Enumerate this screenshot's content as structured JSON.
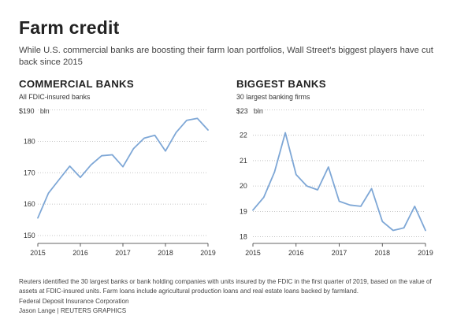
{
  "title": "Farm credit",
  "subtitle": "While U.S. commercial banks are boosting their farm loan portfolios, Wall Street's biggest players have cut back since 2015",
  "chart_data": [
    {
      "type": "line",
      "title": "COMMERCIAL BANKS",
      "subtitle": "All FDIC-insured banks",
      "unit_label": "$190   bln",
      "xlim": [
        2015,
        2019
      ],
      "ylim": [
        148,
        190
      ],
      "x_ticks": [
        "2015",
        "2016",
        "2017",
        "2018",
        "2019"
      ],
      "y_ticks": [
        150,
        160,
        170,
        180,
        190
      ],
      "y_tick_labels": [
        "150",
        "160",
        "170",
        "180",
        ""
      ],
      "color": "#7ea7d6",
      "series": [
        {
          "x": [
            2015.0,
            2015.25,
            2015.5,
            2015.75,
            2016.0,
            2016.25,
            2016.5,
            2016.75,
            2017.0,
            2017.25,
            2017.5,
            2017.75,
            2018.0,
            2018.25,
            2018.5,
            2018.75,
            2019.0
          ],
          "values": [
            155.6,
            163.5,
            167.8,
            172.1,
            168.5,
            172.5,
            175.4,
            175.7,
            171.9,
            177.7,
            181.0,
            181.9,
            176.9,
            182.8,
            186.7,
            187.3,
            183.6
          ]
        }
      ]
    },
    {
      "type": "line",
      "title": "BIGGEST BANKS",
      "subtitle": "30 largest banking firms",
      "unit_label": "$23   bln",
      "xlim": [
        2015,
        2019
      ],
      "ylim": [
        17.8,
        23
      ],
      "x_ticks": [
        "2015",
        "2016",
        "2017",
        "2018",
        "2019"
      ],
      "y_ticks": [
        18,
        19,
        20,
        21,
        22,
        23
      ],
      "y_tick_labels": [
        "18",
        "19",
        "20",
        "21",
        "22",
        ""
      ],
      "color": "#7ea7d6",
      "series": [
        {
          "x": [
            2015.0,
            2015.25,
            2015.5,
            2015.75,
            2016.0,
            2016.25,
            2016.5,
            2016.75,
            2017.0,
            2017.25,
            2017.5,
            2017.75,
            2018.0,
            2018.25,
            2018.5,
            2018.75,
            2019.0
          ],
          "values": [
            19.05,
            19.55,
            20.55,
            22.1,
            20.45,
            20.0,
            19.85,
            20.75,
            19.4,
            19.25,
            19.2,
            19.9,
            18.6,
            18.25,
            18.35,
            19.2,
            18.25
          ]
        }
      ]
    }
  ],
  "footer": {
    "note": "Reuters identified the 30 largest banks or bank holding companies with units insured by the FDIC in the first quarter of 2019, based on the value of assets at FDIC-insured units. Farm loans include agricultural production loans and real estate loans backed by farmland.",
    "source": "Federal Deposit Insurance Corporation",
    "credit": "Jason Lange   | REUTERS GRAPHICS"
  }
}
